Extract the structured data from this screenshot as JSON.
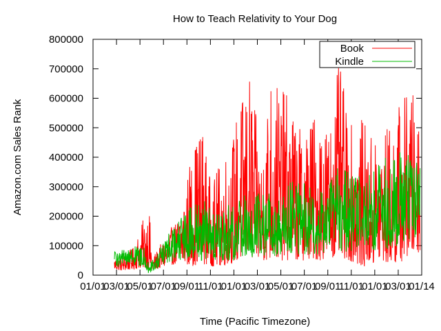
{
  "chart_data": {
    "type": "line",
    "title": "How to Teach Relativity to Your Dog",
    "xlabel": "Time (Pacific Timezone)",
    "ylabel": "Amazon.com Sales Rank",
    "ylim": [
      0,
      800000
    ],
    "yticks": [
      "0",
      "100000",
      "200000",
      "300000",
      "400000",
      "500000",
      "600000",
      "700000",
      "800000"
    ],
    "xticks": [
      "01/01",
      "03/01",
      "05/01",
      "07/01",
      "09/01",
      "11/01",
      "01/01",
      "03/01",
      "05/01",
      "07/01",
      "09/01",
      "11/01",
      "01/01",
      "03/01",
      "01/14"
    ],
    "legend_position": "top-right",
    "series": [
      {
        "name": "Book",
        "color": "#ff0000",
        "x_start_fraction": 0.065,
        "x_end_fraction": 0.995,
        "envelope": [
          [
            0.065,
            20000,
            60000
          ],
          [
            0.09,
            15000,
            70000
          ],
          [
            0.12,
            20000,
            90000
          ],
          [
            0.15,
            25000,
            180000
          ],
          [
            0.17,
            20000,
            250000
          ],
          [
            0.18,
            15000,
            60000
          ],
          [
            0.22,
            30000,
            130000
          ],
          [
            0.26,
            40000,
            200000
          ],
          [
            0.3,
            30000,
            420000
          ],
          [
            0.33,
            40000,
            530000
          ],
          [
            0.36,
            30000,
            300000
          ],
          [
            0.39,
            30000,
            400000
          ],
          [
            0.42,
            40000,
            460000
          ],
          [
            0.45,
            50000,
            600000
          ],
          [
            0.48,
            50000,
            690000
          ],
          [
            0.51,
            50000,
            400000
          ],
          [
            0.54,
            50000,
            700000
          ],
          [
            0.57,
            50000,
            640000
          ],
          [
            0.6,
            50000,
            600000
          ],
          [
            0.63,
            50000,
            500000
          ],
          [
            0.66,
            50000,
            550000
          ],
          [
            0.69,
            50000,
            560000
          ],
          [
            0.72,
            60000,
            520000
          ],
          [
            0.75,
            60000,
            730000
          ],
          [
            0.78,
            50000,
            500000
          ],
          [
            0.81,
            30000,
            550000
          ],
          [
            0.84,
            30000,
            480000
          ],
          [
            0.87,
            40000,
            500000
          ],
          [
            0.9,
            40000,
            510000
          ],
          [
            0.93,
            40000,
            590000
          ],
          [
            0.96,
            60000,
            640000
          ],
          [
            0.995,
            80000,
            590000
          ]
        ]
      },
      {
        "name": "Kindle",
        "color": "#00bb00",
        "x_start_fraction": 0.065,
        "x_end_fraction": 0.995,
        "envelope": [
          [
            0.065,
            30000,
            80000
          ],
          [
            0.09,
            25000,
            90000
          ],
          [
            0.12,
            30000,
            100000
          ],
          [
            0.15,
            30000,
            110000
          ],
          [
            0.17,
            5000,
            40000
          ],
          [
            0.19,
            20000,
            60000
          ],
          [
            0.22,
            40000,
            130000
          ],
          [
            0.26,
            50000,
            190000
          ],
          [
            0.3,
            60000,
            240000
          ],
          [
            0.33,
            50000,
            270000
          ],
          [
            0.36,
            50000,
            230000
          ],
          [
            0.39,
            50000,
            210000
          ],
          [
            0.42,
            50000,
            250000
          ],
          [
            0.45,
            50000,
            280000
          ],
          [
            0.48,
            60000,
            290000
          ],
          [
            0.51,
            60000,
            280000
          ],
          [
            0.54,
            60000,
            290000
          ],
          [
            0.57,
            70000,
            250000
          ],
          [
            0.6,
            70000,
            320000
          ],
          [
            0.63,
            70000,
            330000
          ],
          [
            0.66,
            70000,
            300000
          ],
          [
            0.69,
            70000,
            300000
          ],
          [
            0.72,
            80000,
            340000
          ],
          [
            0.75,
            80000,
            370000
          ],
          [
            0.78,
            80000,
            350000
          ],
          [
            0.81,
            90000,
            370000
          ],
          [
            0.84,
            90000,
            360000
          ],
          [
            0.87,
            80000,
            390000
          ],
          [
            0.9,
            90000,
            410000
          ],
          [
            0.93,
            100000,
            420000
          ],
          [
            0.96,
            120000,
            430000
          ],
          [
            0.995,
            130000,
            420000
          ]
        ]
      }
    ]
  }
}
